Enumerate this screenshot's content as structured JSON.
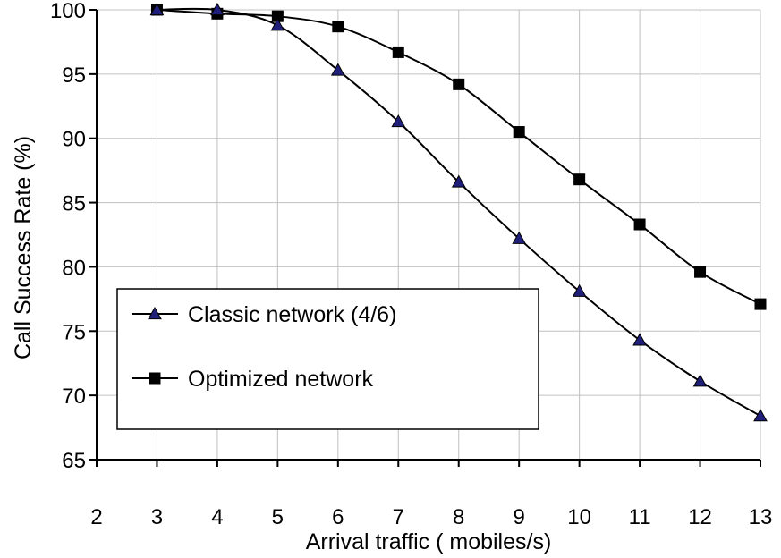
{
  "chart_data": {
    "type": "line",
    "xlabel": "Arrival traffic ( mobiles/s)",
    "ylabel": "Call Success Rate (%)",
    "xlim": [
      2,
      13
    ],
    "ylim": [
      65,
      100
    ],
    "x_ticks": [
      2,
      3,
      4,
      5,
      6,
      7,
      8,
      9,
      10,
      11,
      12,
      13
    ],
    "y_ticks": [
      65,
      70,
      75,
      80,
      85,
      90,
      95,
      100
    ],
    "grid": true,
    "legend_position": "lower-left",
    "series": [
      {
        "name": "Classic network (4/6)",
        "marker": "triangle",
        "marker_color": "#1f1f7a",
        "x": [
          3,
          4,
          5,
          6,
          7,
          8,
          9,
          10,
          11,
          12,
          13
        ],
        "y": [
          100,
          100,
          98.8,
          95.3,
          91.3,
          86.6,
          82.2,
          78.1,
          74.3,
          71.1,
          68.4
        ]
      },
      {
        "name": "Optimized network",
        "marker": "square",
        "marker_color": "#000000",
        "x": [
          3,
          4,
          5,
          6,
          7,
          8,
          9,
          10,
          11,
          12,
          13
        ],
        "y": [
          100,
          99.7,
          99.5,
          98.7,
          96.7,
          94.2,
          90.5,
          86.8,
          83.3,
          79.6,
          77.1
        ]
      }
    ]
  }
}
